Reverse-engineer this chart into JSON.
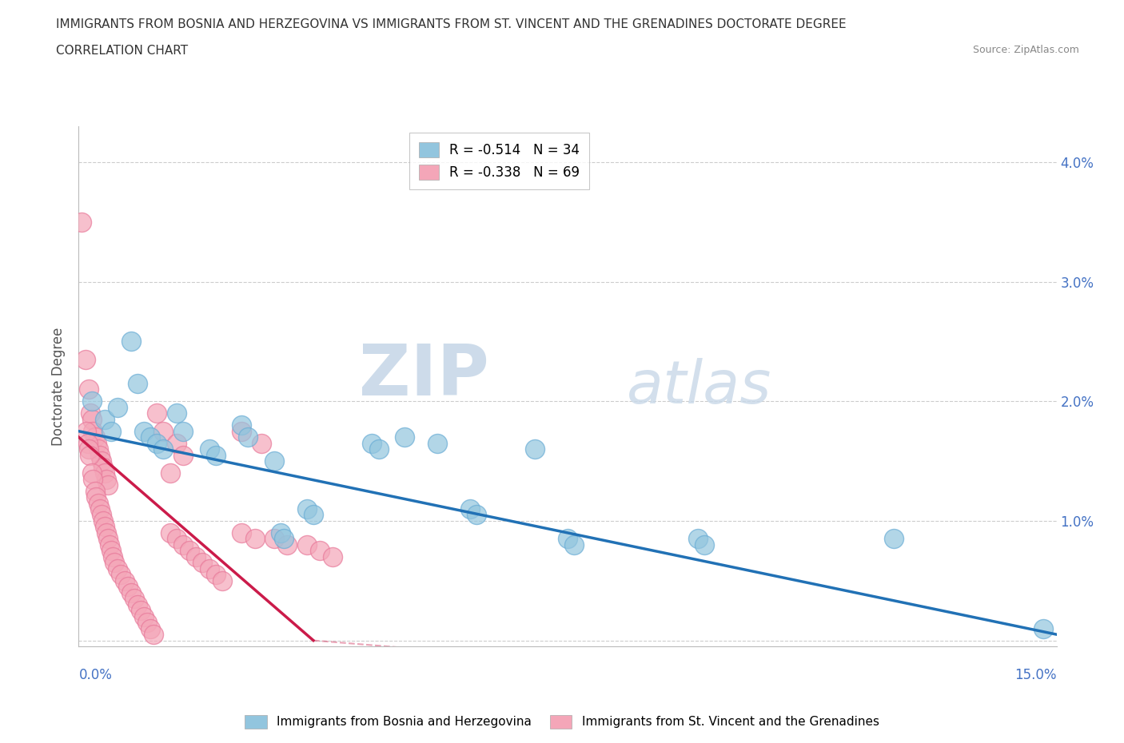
{
  "title_line1": "IMMIGRANTS FROM BOSNIA AND HERZEGOVINA VS IMMIGRANTS FROM ST. VINCENT AND THE GRENADINES DOCTORATE DEGREE",
  "title_line2": "CORRELATION CHART",
  "source": "Source: ZipAtlas.com",
  "ylabel": "Doctorate Degree",
  "ytick_vals": [
    0.0,
    1.0,
    2.0,
    3.0,
    4.0
  ],
  "ytick_labels": [
    "",
    "1.0%",
    "2.0%",
    "3.0%",
    "4.0%"
  ],
  "xrange": [
    0.0,
    15.0
  ],
  "yrange": [
    -0.05,
    4.3
  ],
  "legend_r1": "R = -0.514   N = 34",
  "legend_r2": "R = -0.338   N = 69",
  "color_bosnia": "#92c5de",
  "color_stvincent": "#f4a6b8",
  "trendline_color_bosnia": "#2171b5",
  "trendline_color_stvincent": "#cb1b4a",
  "watermark_zip": "ZIP",
  "watermark_atlas": "atlas",
  "bosnia_trendline": [
    [
      0.0,
      1.75
    ],
    [
      15.0,
      0.05
    ]
  ],
  "stvincent_trendline": [
    [
      0.0,
      1.7
    ],
    [
      3.6,
      0.0
    ]
  ],
  "stvincent_trendline_ext": [
    [
      3.6,
      0.0
    ],
    [
      15.0,
      -0.5
    ]
  ],
  "bosnia_scatter": [
    [
      0.2,
      2.0
    ],
    [
      0.4,
      1.85
    ],
    [
      0.5,
      1.75
    ],
    [
      0.6,
      1.95
    ],
    [
      0.8,
      2.5
    ],
    [
      0.9,
      2.15
    ],
    [
      1.0,
      1.75
    ],
    [
      1.1,
      1.7
    ],
    [
      1.2,
      1.65
    ],
    [
      1.3,
      1.6
    ],
    [
      1.5,
      1.9
    ],
    [
      1.6,
      1.75
    ],
    [
      2.0,
      1.6
    ],
    [
      2.1,
      1.55
    ],
    [
      2.5,
      1.8
    ],
    [
      2.6,
      1.7
    ],
    [
      3.0,
      1.5
    ],
    [
      3.1,
      0.9
    ],
    [
      3.15,
      0.85
    ],
    [
      3.5,
      1.1
    ],
    [
      3.6,
      1.05
    ],
    [
      4.5,
      1.65
    ],
    [
      4.6,
      1.6
    ],
    [
      5.0,
      1.7
    ],
    [
      5.5,
      1.65
    ],
    [
      6.0,
      1.1
    ],
    [
      6.1,
      1.05
    ],
    [
      7.0,
      1.6
    ],
    [
      7.5,
      0.85
    ],
    [
      7.6,
      0.8
    ],
    [
      9.5,
      0.85
    ],
    [
      9.6,
      0.8
    ],
    [
      12.5,
      0.85
    ],
    [
      14.8,
      0.1
    ]
  ],
  "stvincent_scatter": [
    [
      0.05,
      3.5
    ],
    [
      0.1,
      2.35
    ],
    [
      0.15,
      2.1
    ],
    [
      0.18,
      1.9
    ],
    [
      0.2,
      1.85
    ],
    [
      0.22,
      1.75
    ],
    [
      0.25,
      1.7
    ],
    [
      0.28,
      1.65
    ],
    [
      0.3,
      1.6
    ],
    [
      0.32,
      1.55
    ],
    [
      0.35,
      1.5
    ],
    [
      0.38,
      1.45
    ],
    [
      0.4,
      1.4
    ],
    [
      0.42,
      1.35
    ],
    [
      0.45,
      1.3
    ],
    [
      0.12,
      1.75
    ],
    [
      0.14,
      1.65
    ],
    [
      0.16,
      1.6
    ],
    [
      0.17,
      1.55
    ],
    [
      0.2,
      1.4
    ],
    [
      0.22,
      1.35
    ],
    [
      0.25,
      1.25
    ],
    [
      0.27,
      1.2
    ],
    [
      0.3,
      1.15
    ],
    [
      0.32,
      1.1
    ],
    [
      0.35,
      1.05
    ],
    [
      0.38,
      1.0
    ],
    [
      0.4,
      0.95
    ],
    [
      0.42,
      0.9
    ],
    [
      0.45,
      0.85
    ],
    [
      0.47,
      0.8
    ],
    [
      0.5,
      0.75
    ],
    [
      0.52,
      0.7
    ],
    [
      0.55,
      0.65
    ],
    [
      0.6,
      0.6
    ],
    [
      0.65,
      0.55
    ],
    [
      0.7,
      0.5
    ],
    [
      0.75,
      0.45
    ],
    [
      0.8,
      0.4
    ],
    [
      0.85,
      0.35
    ],
    [
      0.9,
      0.3
    ],
    [
      0.95,
      0.25
    ],
    [
      1.0,
      0.2
    ],
    [
      1.05,
      0.15
    ],
    [
      1.1,
      0.1
    ],
    [
      1.15,
      0.05
    ],
    [
      1.2,
      1.9
    ],
    [
      1.3,
      1.75
    ],
    [
      1.4,
      1.4
    ],
    [
      1.5,
      1.65
    ],
    [
      1.6,
      1.55
    ],
    [
      1.4,
      0.9
    ],
    [
      1.5,
      0.85
    ],
    [
      1.6,
      0.8
    ],
    [
      1.7,
      0.75
    ],
    [
      1.8,
      0.7
    ],
    [
      1.9,
      0.65
    ],
    [
      2.0,
      0.6
    ],
    [
      2.1,
      0.55
    ],
    [
      2.2,
      0.5
    ],
    [
      2.5,
      1.75
    ],
    [
      2.8,
      1.65
    ],
    [
      2.5,
      0.9
    ],
    [
      2.7,
      0.85
    ],
    [
      3.0,
      0.85
    ],
    [
      3.2,
      0.8
    ],
    [
      3.5,
      0.8
    ],
    [
      3.7,
      0.75
    ],
    [
      3.9,
      0.7
    ]
  ]
}
